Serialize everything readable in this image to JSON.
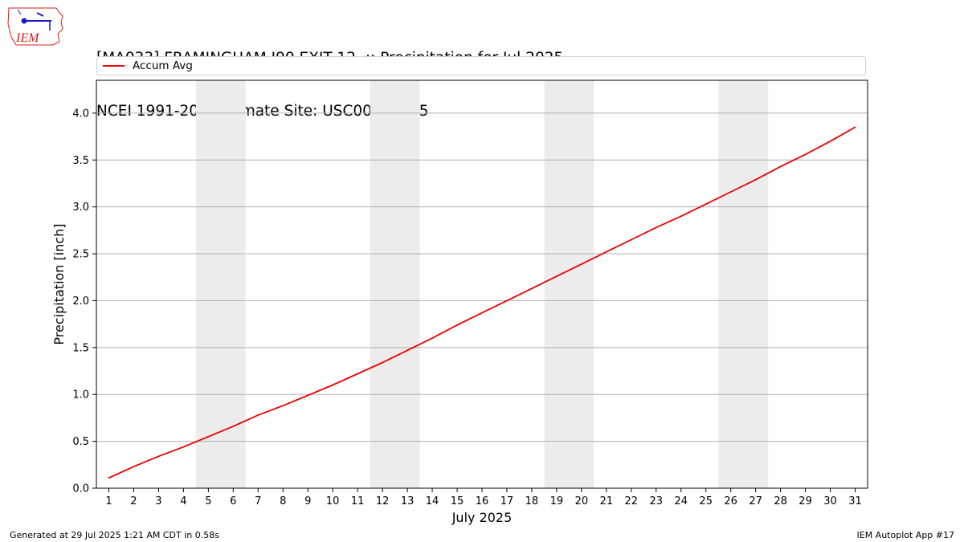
{
  "header": {
    "logo_text": "IEM",
    "title_line1": "[MA033] FRAMINGHAM I90 EXIT 12  :: Precipitation for Jul 2025",
    "title_line2": "NCEI 1991-2020 Climate Site: USC00195175"
  },
  "footer": {
    "generated": "Generated at 29 Jul 2025 1:21 AM CDT in 0.58s",
    "app": "IEM Autoplot App #17"
  },
  "colors": {
    "line": "#ee0000",
    "weekend_band": "#ececec",
    "grid": "#b0b0b0",
    "logo": "#cc2222"
  },
  "chart_data": {
    "type": "line",
    "title": "[MA033] FRAMINGHAM I90 EXIT 12  :: Precipitation for Jul 2025",
    "subtitle": "NCEI 1991-2020 Climate Site: USC00195175",
    "xlabel": "July 2025",
    "ylabel": "Precipitation [inch]",
    "xlim": [
      0.5,
      31.5
    ],
    "ylim": [
      0,
      4.35
    ],
    "grid": "horizontal",
    "legend": "top",
    "x_ticks": [
      1,
      2,
      3,
      4,
      5,
      6,
      7,
      8,
      9,
      10,
      11,
      12,
      13,
      14,
      15,
      16,
      17,
      18,
      19,
      20,
      21,
      22,
      23,
      24,
      25,
      26,
      27,
      28,
      29,
      30,
      31
    ],
    "y_ticks": [
      0.0,
      0.5,
      1.0,
      1.5,
      2.0,
      2.5,
      3.0,
      3.5,
      4.0
    ],
    "weekend_bands": [
      [
        4.5,
        6.5
      ],
      [
        11.5,
        13.5
      ],
      [
        18.5,
        20.5
      ],
      [
        25.5,
        27.5
      ]
    ],
    "series": [
      {
        "name": "Accum Avg",
        "color": "#ee0000",
        "x": [
          1,
          2,
          3,
          4,
          5,
          6,
          7,
          8,
          9,
          10,
          11,
          12,
          13,
          14,
          15,
          16,
          17,
          18,
          19,
          20,
          21,
          22,
          23,
          24,
          25,
          26,
          27,
          28,
          29,
          30,
          31
        ],
        "values": [
          0.11,
          0.23,
          0.34,
          0.44,
          0.55,
          0.66,
          0.78,
          0.88,
          0.99,
          1.1,
          1.22,
          1.34,
          1.47,
          1.6,
          1.74,
          1.87,
          2.0,
          2.13,
          2.26,
          2.39,
          2.52,
          2.65,
          2.78,
          2.9,
          3.03,
          3.16,
          3.29,
          3.43,
          3.56,
          3.7,
          3.85
        ]
      }
    ]
  }
}
